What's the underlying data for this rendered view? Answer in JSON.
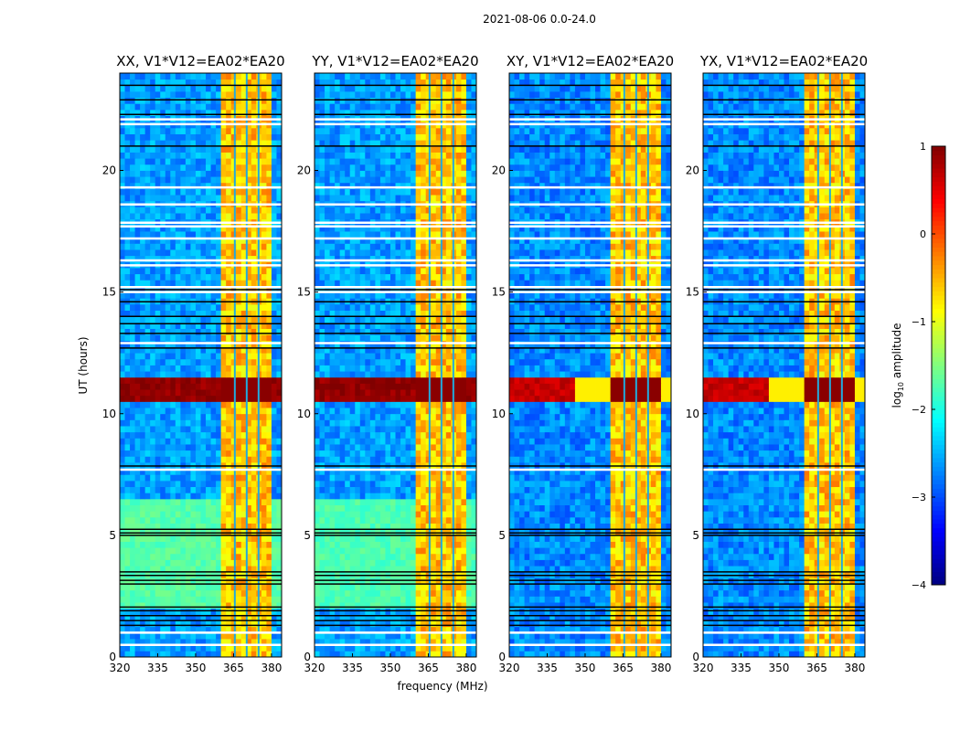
{
  "chart_data": {
    "type": "heatmap",
    "title": "2021-08-06 0.0-24.0",
    "xlabel": "frequency (MHz)",
    "ylabel": "UT (hours)",
    "xlim": [
      320,
      384
    ],
    "ylim": [
      0,
      24
    ],
    "xticks": [
      "320",
      "335",
      "350",
      "365",
      "380"
    ],
    "xtick_values": [
      320,
      335,
      350,
      365,
      380
    ],
    "yticks": [
      "0",
      "5",
      "10",
      "15",
      "20"
    ],
    "ytick_values": [
      0,
      5,
      10,
      15,
      20
    ],
    "colorbar": {
      "label": "log10 amplitude",
      "label_main": "log",
      "label_sub": "10",
      "label_rest": " amplitude",
      "colormap": "jet",
      "range": [
        -4,
        1
      ],
      "ticks": [
        "1",
        "0",
        "−1",
        "−2",
        "−3",
        "−4"
      ],
      "tick_values": [
        1,
        0,
        -1,
        -2,
        -3,
        -4
      ]
    },
    "panels": [
      {
        "title": "XX, V1*V12=EA02*EA20",
        "background_level": -2.6,
        "low_band_level": -1.7,
        "low_band_hours": [
          2.0,
          6.5
        ],
        "strong_band_level": 0.85,
        "strong_band_fades_above_mhz": null
      },
      {
        "title": "YY, V1*V12=EA02*EA20",
        "background_level": -2.6,
        "low_band_level": -1.75,
        "low_band_hours": [
          2.0,
          6.5
        ],
        "strong_band_level": 0.85,
        "strong_band_fades_above_mhz": null
      },
      {
        "title": "XY, V1*V12=EA02*EA20",
        "background_level": -2.7,
        "low_band_level": null,
        "low_band_hours": null,
        "strong_band_level": 0.6,
        "strong_band_fades_above_mhz": 345
      },
      {
        "title": "YX, V1*V12=EA02*EA20",
        "background_level": -2.7,
        "low_band_level": null,
        "low_band_hours": null,
        "strong_band_level": 0.6,
        "strong_band_fades_above_mhz": 345
      }
    ],
    "rfi_band_mhz": [
      360,
      380
    ],
    "rfi_level": -0.6,
    "rfi_gap_mhz": [
      365.5,
      370.2,
      374.9
    ],
    "strong_band_hours": [
      10.6,
      11.5
    ],
    "flagged_hours_white": [
      0.5,
      1.0,
      7.7,
      12.9,
      15.0,
      15.2,
      16.1,
      16.3,
      17.2,
      17.7,
      17.85,
      18.6,
      19.3,
      21.9,
      22.1
    ],
    "dropout_hours_black": [
      1.3,
      1.5,
      1.7,
      1.9,
      2.05,
      3.0,
      3.15,
      3.35,
      3.5,
      5.0,
      5.1,
      5.25,
      7.85,
      12.7,
      13.3,
      13.7,
      14.0,
      14.6,
      15.1,
      21.0,
      22.3,
      22.9,
      23.5
    ]
  }
}
